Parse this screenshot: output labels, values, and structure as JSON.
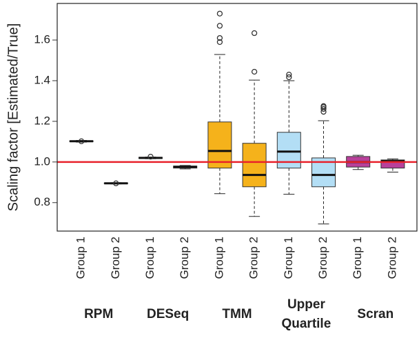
{
  "chart_data": {
    "type": "box",
    "ylabel": "Scaling factor [Estimated/True]",
    "ylim": [
      0.66,
      1.78
    ],
    "yticks": [
      0.8,
      {
        "value": 1,
        "label": "1.0"
      },
      1.2,
      1.4,
      1.6
    ],
    "hline": {
      "value": 1,
      "color": "#e8202a"
    },
    "series": [
      {
        "name": "RPM",
        "color": "#ffffff",
        "boxes": [
          {
            "label": "Group 1",
            "whisker_low": 1.098,
            "q1": 1.1,
            "median": 1.102,
            "q3": 1.104,
            "whisker_high": 1.106,
            "outliers": [
              1.102
            ]
          },
          {
            "label": "Group 2",
            "whisker_low": 0.892,
            "q1": 0.893,
            "median": 0.895,
            "q3": 0.897,
            "whisker_high": 0.898,
            "outliers": [
              0.895
            ]
          }
        ]
      },
      {
        "name": "DESeq",
        "color": "#ffffff",
        "boxes": [
          {
            "label": "Group 1",
            "whisker_low": 1.016,
            "q1": 1.017,
            "median": 1.02,
            "q3": 1.023,
            "whisker_high": 1.024,
            "outliers": [
              1.026
            ]
          },
          {
            "label": "Group 2",
            "whisker_low": 0.966,
            "q1": 0.97,
            "median": 0.976,
            "q3": 0.98,
            "whisker_high": 0.983,
            "outliers": []
          }
        ]
      },
      {
        "name": "TMM",
        "color": "#f5b21b",
        "boxes": [
          {
            "label": "Group 1",
            "whisker_low": 0.844,
            "q1": 0.97,
            "median": 1.054,
            "q3": 1.197,
            "whisker_high": 1.529,
            "outliers": [
              1.59,
              1.61,
              1.67,
              1.73
            ]
          },
          {
            "label": "Group 2",
            "whisker_low": 0.732,
            "q1": 0.878,
            "median": 0.936,
            "q3": 1.092,
            "whisker_high": 1.403,
            "outliers": [
              1.444,
              1.634
            ]
          }
        ]
      },
      {
        "name": "Upper Quartile",
        "color": "#b3def5",
        "boxes": [
          {
            "label": "Group 1",
            "whisker_low": 0.841,
            "q1": 0.97,
            "median": 1.051,
            "q3": 1.146,
            "whisker_high": 1.4,
            "outliers": [
              1.417,
              1.43
            ]
          },
          {
            "label": "Group 2",
            "whisker_low": 0.695,
            "q1": 0.878,
            "median": 0.936,
            "q3": 1.02,
            "whisker_high": 1.203,
            "outliers": [
              1.247,
              1.261,
              1.27,
              1.275
            ]
          }
        ]
      },
      {
        "name": "Scran",
        "color": "#b8409a",
        "boxes": [
          {
            "label": "Group 1",
            "whisker_low": 0.963,
            "q1": 0.975,
            "median": 1.0,
            "q3": 1.027,
            "whisker_high": 1.033,
            "outliers": []
          },
          {
            "label": "Group 2",
            "whisker_low": 0.95,
            "q1": 0.97,
            "median": 1.005,
            "q3": 1.01,
            "whisker_high": 1.015,
            "outliers": []
          }
        ]
      }
    ]
  }
}
